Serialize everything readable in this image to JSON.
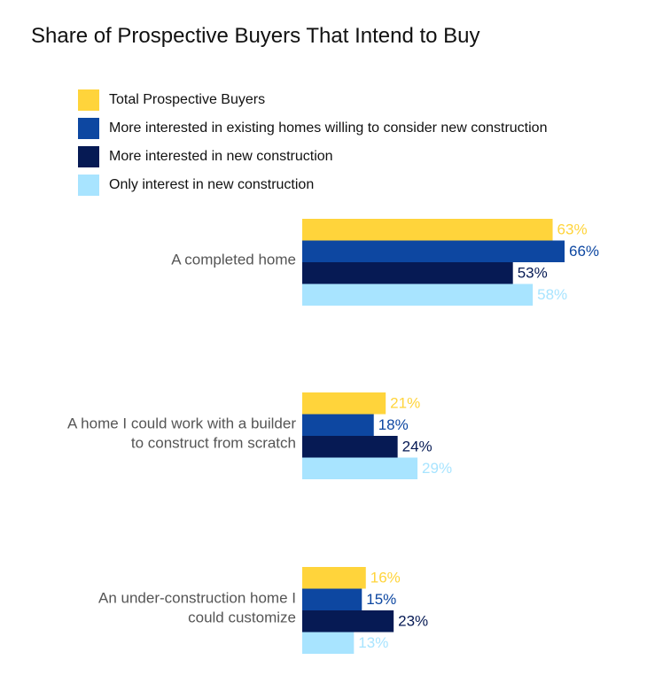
{
  "chart_data": {
    "type": "bar",
    "orientation": "horizontal",
    "title": "Share of Prospective Buyers That Intend to Buy",
    "xlabel": "",
    "ylabel": "",
    "xlim": [
      0,
      70
    ],
    "grid": false,
    "legend_position": "top-left",
    "categories": [
      [
        "A completed home"
      ],
      [
        "A home I could work with a builder",
        "to construct from scratch"
      ],
      [
        "An under-construction home I",
        "could customize"
      ]
    ],
    "series": [
      {
        "name": "Total Prospective Buyers",
        "color": "#FFD43B",
        "values": [
          63,
          21,
          16
        ],
        "labels": [
          "63%",
          "21%",
          "16%"
        ]
      },
      {
        "name": "More interested in existing homes willing to consider new construction",
        "color": "#0D47A1",
        "values": [
          66,
          18,
          15
        ],
        "labels": [
          "66%",
          "18%",
          "15%"
        ]
      },
      {
        "name": "More interested in new construction",
        "color": "#061A54",
        "values": [
          53,
          24,
          23
        ],
        "labels": [
          "53%",
          "24%",
          "23%"
        ]
      },
      {
        "name": "Only interest in new construction",
        "color": "#A8E4FF",
        "values": [
          58,
          29,
          13
        ],
        "labels": [
          "58%",
          "29%",
          "13%"
        ]
      }
    ]
  }
}
